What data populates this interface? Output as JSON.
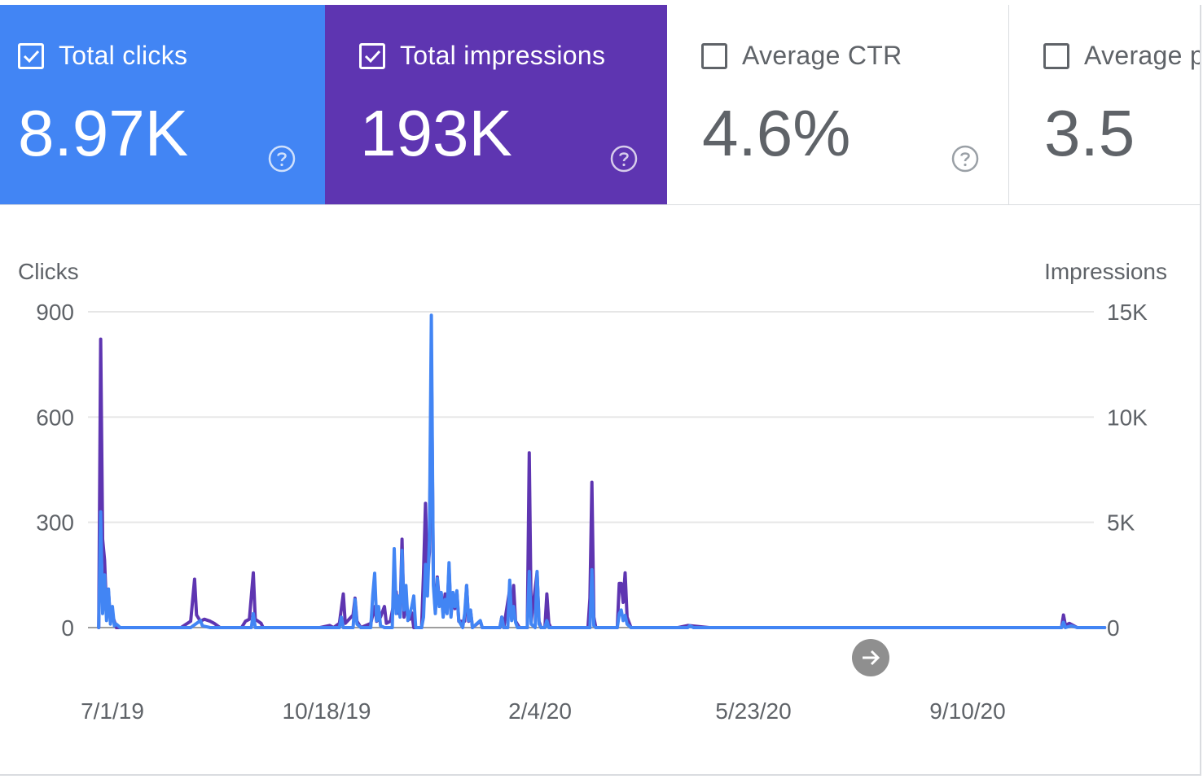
{
  "metrics": [
    {
      "label": "Total clicks",
      "value": "8.97K",
      "checked": true,
      "bg": "#4285f4",
      "icon": "check-icon",
      "help_icon": "help-circle-icon"
    },
    {
      "label": "Total impressions",
      "value": "193K",
      "checked": true,
      "bg": "#5e35b1",
      "icon": "check-icon",
      "help_icon": "help-circle-icon"
    },
    {
      "label": "Average CTR",
      "value": "4.6%",
      "checked": false,
      "bg": "#ffffff",
      "help_icon": "help-circle-icon"
    },
    {
      "label": "Average p",
      "value": "3.5",
      "checked": false,
      "bg": "#ffffff"
    }
  ],
  "colors": {
    "clicks": "#4285f4",
    "impressions": "#5e35b1",
    "grid": "#e6e6e6",
    "axis_text": "#5f6368"
  },
  "chart_data": {
    "type": "line",
    "y_left_label": "Clicks",
    "y_right_label": "Impressions",
    "y_left_ticks": [
      "900",
      "600",
      "300",
      "0"
    ],
    "y_right_ticks": [
      "15K",
      "10K",
      "5K",
      "0"
    ],
    "ylim_left": [
      0,
      900
    ],
    "ylim_right": [
      0,
      15000
    ],
    "x_tick_labels": [
      "7/1/19",
      "10/18/19",
      "2/4/20",
      "5/23/20",
      "9/10/20"
    ],
    "x_start": "2019-06-24",
    "x_end": "2020-11-19",
    "grid": true,
    "scroll_icon": "arrow-right-icon",
    "series": [
      {
        "name": "Clicks",
        "axis": "left",
        "color": "#4285f4",
        "points": [
          [
            "2019-06-24",
            0
          ],
          [
            "2019-06-25",
            330
          ],
          [
            "2019-06-26",
            40
          ],
          [
            "2019-06-27",
            150
          ],
          [
            "2019-06-28",
            20
          ],
          [
            "2019-06-29",
            110
          ],
          [
            "2019-06-30",
            10
          ],
          [
            "2019-07-01",
            60
          ],
          [
            "2019-07-02",
            5
          ],
          [
            "2019-07-03",
            10
          ],
          [
            "2019-07-05",
            0
          ],
          [
            "2019-08-01",
            0
          ],
          [
            "2019-08-10",
            0
          ],
          [
            "2019-08-15",
            20
          ],
          [
            "2019-08-16",
            5
          ],
          [
            "2019-08-20",
            0
          ],
          [
            "2019-09-10",
            0
          ],
          [
            "2019-09-11",
            40
          ],
          [
            "2019-09-12",
            0
          ],
          [
            "2019-10-15",
            0
          ],
          [
            "2019-10-25",
            0
          ],
          [
            "2019-10-26",
            30
          ],
          [
            "2019-10-27",
            0
          ],
          [
            "2019-11-01",
            0
          ],
          [
            "2019-11-02",
            80
          ],
          [
            "2019-11-03",
            10
          ],
          [
            "2019-11-05",
            0
          ],
          [
            "2019-11-10",
            0
          ],
          [
            "2019-11-11",
            90
          ],
          [
            "2019-11-12",
            155
          ],
          [
            "2019-11-13",
            20
          ],
          [
            "2019-11-14",
            60
          ],
          [
            "2019-11-15",
            5
          ],
          [
            "2019-11-17",
            0
          ],
          [
            "2019-11-21",
            0
          ],
          [
            "2019-11-22",
            225
          ],
          [
            "2019-11-23",
            40
          ],
          [
            "2019-11-24",
            90
          ],
          [
            "2019-11-25",
            30
          ],
          [
            "2019-11-26",
            220
          ],
          [
            "2019-11-27",
            50
          ],
          [
            "2019-11-28",
            120
          ],
          [
            "2019-11-29",
            20
          ],
          [
            "2019-12-01",
            60
          ],
          [
            "2019-12-02",
            90
          ],
          [
            "2019-12-03",
            0
          ],
          [
            "2019-12-06",
            0
          ],
          [
            "2019-12-07",
            30
          ],
          [
            "2019-12-08",
            180
          ],
          [
            "2019-12-09",
            90
          ],
          [
            "2019-12-10",
            250
          ],
          [
            "2019-12-11",
            890
          ],
          [
            "2019-12-12",
            120
          ],
          [
            "2019-12-13",
            40
          ],
          [
            "2019-12-14",
            140
          ],
          [
            "2019-12-15",
            60
          ],
          [
            "2019-12-16",
            100
          ],
          [
            "2019-12-17",
            30
          ],
          [
            "2019-12-18",
            80
          ],
          [
            "2019-12-19",
            40
          ],
          [
            "2019-12-20",
            185
          ],
          [
            "2019-12-21",
            30
          ],
          [
            "2019-12-22",
            100
          ],
          [
            "2019-12-23",
            60
          ],
          [
            "2019-12-24",
            105
          ],
          [
            "2019-12-25",
            20
          ],
          [
            "2019-12-27",
            0
          ],
          [
            "2019-12-28",
            40
          ],
          [
            "2019-12-29",
            120
          ],
          [
            "2019-12-30",
            20
          ],
          [
            "2019-12-31",
            50
          ],
          [
            "2020-01-01",
            0
          ],
          [
            "2020-01-05",
            20
          ],
          [
            "2020-01-06",
            0
          ],
          [
            "2020-01-15",
            0
          ],
          [
            "2020-01-16",
            30
          ],
          [
            "2020-01-17",
            0
          ],
          [
            "2020-01-19",
            0
          ],
          [
            "2020-01-20",
            135
          ],
          [
            "2020-01-21",
            20
          ],
          [
            "2020-01-22",
            60
          ],
          [
            "2020-01-23",
            15
          ],
          [
            "2020-01-24",
            0
          ],
          [
            "2020-01-29",
            0
          ],
          [
            "2020-01-30",
            160
          ],
          [
            "2020-01-31",
            10
          ],
          [
            "2020-02-02",
            0
          ],
          [
            "2020-02-03",
            160
          ],
          [
            "2020-02-04",
            10
          ],
          [
            "2020-02-05",
            0
          ],
          [
            "2020-02-07",
            0
          ],
          [
            "2020-02-08",
            20
          ],
          [
            "2020-02-09",
            0
          ],
          [
            "2020-03-01",
            0
          ],
          [
            "2020-03-02",
            165
          ],
          [
            "2020-03-03",
            5
          ],
          [
            "2020-03-04",
            0
          ],
          [
            "2020-03-15",
            0
          ],
          [
            "2020-03-16",
            40
          ],
          [
            "2020-03-17",
            50
          ],
          [
            "2020-03-18",
            20
          ],
          [
            "2020-03-19",
            35
          ],
          [
            "2020-03-20",
            10
          ],
          [
            "2020-03-22",
            0
          ],
          [
            "2020-04-15",
            0
          ],
          [
            "2020-04-20",
            0
          ],
          [
            "2020-04-21",
            5
          ],
          [
            "2020-04-23",
            0
          ],
          [
            "2020-09-10",
            0
          ],
          [
            "2020-09-20",
            0
          ],
          [
            "2020-10-28",
            0
          ],
          [
            "2020-10-29",
            15
          ],
          [
            "2020-10-30",
            0
          ],
          [
            "2020-11-02",
            5
          ],
          [
            "2020-11-05",
            0
          ],
          [
            "2020-11-19",
            0
          ]
        ]
      },
      {
        "name": "Impressions",
        "axis": "right",
        "color": "#5e35b1",
        "points": [
          [
            "2019-06-24",
            0
          ],
          [
            "2019-06-25",
            13700
          ],
          [
            "2019-06-26",
            4200
          ],
          [
            "2019-06-27",
            3200
          ],
          [
            "2019-06-28",
            800
          ],
          [
            "2019-06-29",
            1700
          ],
          [
            "2019-06-30",
            300
          ],
          [
            "2019-07-01",
            600
          ],
          [
            "2019-07-03",
            0
          ],
          [
            "2019-08-05",
            0
          ],
          [
            "2019-08-10",
            300
          ],
          [
            "2019-08-12",
            2300
          ],
          [
            "2019-08-13",
            600
          ],
          [
            "2019-08-15",
            300
          ],
          [
            "2019-08-17",
            400
          ],
          [
            "2019-08-20",
            300
          ],
          [
            "2019-08-22",
            200
          ],
          [
            "2019-08-25",
            0
          ],
          [
            "2019-09-05",
            0
          ],
          [
            "2019-09-07",
            300
          ],
          [
            "2019-09-09",
            400
          ],
          [
            "2019-09-11",
            2600
          ],
          [
            "2019-09-12",
            400
          ],
          [
            "2019-09-15",
            200
          ],
          [
            "2019-09-16",
            0
          ],
          [
            "2019-10-15",
            0
          ],
          [
            "2019-10-20",
            100
          ],
          [
            "2019-10-22",
            0
          ],
          [
            "2019-10-25",
            200
          ],
          [
            "2019-10-27",
            1600
          ],
          [
            "2019-10-28",
            200
          ],
          [
            "2019-11-01",
            600
          ],
          [
            "2019-11-02",
            1400
          ],
          [
            "2019-11-03",
            300
          ],
          [
            "2019-11-05",
            0
          ],
          [
            "2019-11-10",
            200
          ],
          [
            "2019-11-12",
            1000
          ],
          [
            "2019-11-13",
            300
          ],
          [
            "2019-11-15",
            500
          ],
          [
            "2019-11-17",
            1000
          ],
          [
            "2019-11-18",
            200
          ],
          [
            "2019-11-20",
            300
          ],
          [
            "2019-11-23",
            1700
          ],
          [
            "2019-11-24",
            700
          ],
          [
            "2019-11-25",
            600
          ],
          [
            "2019-11-26",
            4200
          ],
          [
            "2019-11-27",
            500
          ],
          [
            "2019-11-28",
            1000
          ],
          [
            "2019-11-30",
            400
          ],
          [
            "2019-12-01",
            700
          ],
          [
            "2019-12-02",
            0
          ],
          [
            "2019-12-06",
            0
          ],
          [
            "2019-12-07",
            2600
          ],
          [
            "2019-12-08",
            5900
          ],
          [
            "2019-12-09",
            2400
          ],
          [
            "2019-12-10",
            3600
          ],
          [
            "2019-12-11",
            13000
          ],
          [
            "2019-12-12",
            2200
          ],
          [
            "2019-12-13",
            800
          ],
          [
            "2019-12-14",
            2400
          ],
          [
            "2019-12-15",
            1300
          ],
          [
            "2019-12-16",
            1600
          ],
          [
            "2019-12-17",
            700
          ],
          [
            "2019-12-18",
            1600
          ],
          [
            "2019-12-19",
            800
          ],
          [
            "2019-12-20",
            2800
          ],
          [
            "2019-12-21",
            600
          ],
          [
            "2019-12-22",
            1600
          ],
          [
            "2019-12-23",
            900
          ],
          [
            "2019-12-24",
            1700
          ],
          [
            "2019-12-25",
            300
          ],
          [
            "2019-12-28",
            300
          ],
          [
            "2019-12-29",
            2000
          ],
          [
            "2019-12-30",
            300
          ],
          [
            "2019-12-31",
            800
          ],
          [
            "2020-01-01",
            0
          ],
          [
            "2020-01-05",
            300
          ],
          [
            "2020-01-06",
            0
          ],
          [
            "2020-01-15",
            0
          ],
          [
            "2020-01-16",
            500
          ],
          [
            "2020-01-17",
            0
          ],
          [
            "2020-01-20",
            1800
          ],
          [
            "2020-01-21",
            400
          ],
          [
            "2020-01-22",
            2000
          ],
          [
            "2020-01-23",
            300
          ],
          [
            "2020-01-25",
            0
          ],
          [
            "2020-01-29",
            0
          ],
          [
            "2020-01-30",
            8300
          ],
          [
            "2020-01-31",
            300
          ],
          [
            "2020-02-03",
            2600
          ],
          [
            "2020-02-04",
            300
          ],
          [
            "2020-02-05",
            0
          ],
          [
            "2020-02-07",
            0
          ],
          [
            "2020-02-08",
            1600
          ],
          [
            "2020-02-09",
            200
          ],
          [
            "2020-02-10",
            0
          ],
          [
            "2020-02-29",
            0
          ],
          [
            "2020-03-01",
            1400
          ],
          [
            "2020-03-02",
            6900
          ],
          [
            "2020-03-03",
            500
          ],
          [
            "2020-03-04",
            0
          ],
          [
            "2020-03-15",
            0
          ],
          [
            "2020-03-16",
            2100
          ],
          [
            "2020-03-17",
            2100
          ],
          [
            "2020-03-18",
            1200
          ],
          [
            "2020-03-19",
            2600
          ],
          [
            "2020-03-20",
            500
          ],
          [
            "2020-03-22",
            0
          ],
          [
            "2020-04-15",
            0
          ],
          [
            "2020-04-20",
            100
          ],
          [
            "2020-05-01",
            0
          ],
          [
            "2020-09-10",
            0
          ],
          [
            "2020-09-20",
            0
          ],
          [
            "2020-10-28",
            0
          ],
          [
            "2020-10-29",
            600
          ],
          [
            "2020-10-30",
            100
          ],
          [
            "2020-11-01",
            200
          ],
          [
            "2020-11-03",
            100
          ],
          [
            "2020-11-05",
            0
          ],
          [
            "2020-11-19",
            0
          ]
        ]
      }
    ]
  }
}
